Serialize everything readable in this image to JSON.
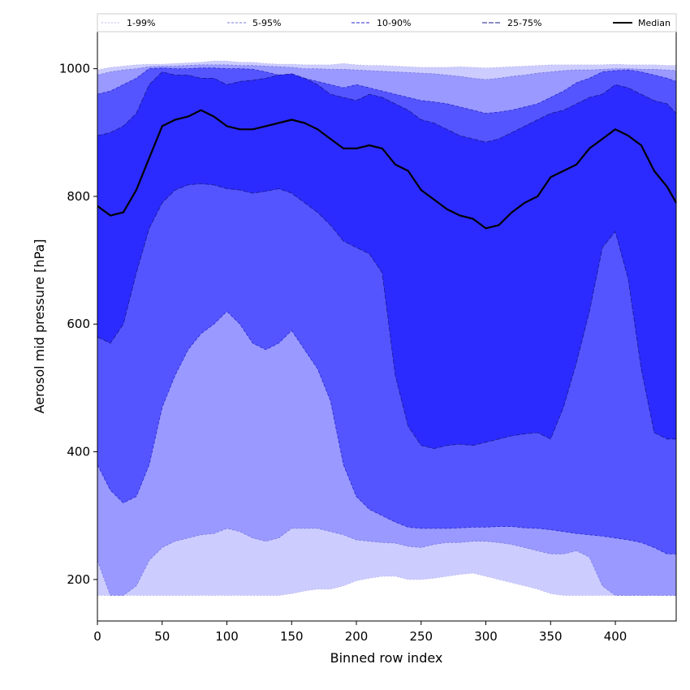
{
  "chart_data": {
    "type": "area",
    "xlabel": "Binned row index",
    "ylabel": "Aerosol mid pressure [hPa]",
    "xlim": [
      0,
      447
    ],
    "ylim": [
      135,
      1058
    ],
    "x_ticks": [
      0,
      50,
      100,
      150,
      200,
      250,
      300,
      350,
      400
    ],
    "y_ticks": [
      200,
      400,
      600,
      800,
      1000
    ],
    "grid": false,
    "legend_placement": "top",
    "floor": 175,
    "x": [
      0,
      10,
      20,
      30,
      40,
      50,
      60,
      70,
      80,
      90,
      100,
      110,
      120,
      130,
      140,
      150,
      160,
      170,
      180,
      190,
      200,
      210,
      220,
      230,
      240,
      250,
      260,
      270,
      280,
      290,
      300,
      310,
      320,
      330,
      340,
      350,
      360,
      370,
      380,
      390,
      400,
      410,
      420,
      430,
      440,
      447
    ],
    "series": [
      {
        "name": "1-99%",
        "color": "#ccccff",
        "line_color": "#b8b8ee",
        "dash": "2,2",
        "lower": [
          175,
          175,
          175,
          175,
          175,
          175,
          175,
          175,
          175,
          175,
          175,
          175,
          175,
          175,
          175,
          178,
          182,
          185,
          185,
          190,
          198,
          202,
          205,
          205,
          200,
          200,
          202,
          205,
          208,
          210,
          205,
          200,
          195,
          190,
          185,
          178,
          175,
          175,
          175,
          175,
          175,
          175,
          175,
          175,
          175,
          175
        ],
        "upper": [
          998,
          1002,
          1004,
          1006,
          1007,
          1007,
          1008,
          1009,
          1010,
          1012,
          1012,
          1010,
          1010,
          1008,
          1007,
          1007,
          1006,
          1006,
          1006,
          1008,
          1006,
          1005,
          1005,
          1004,
          1003,
          1002,
          1002,
          1002,
          1003,
          1002,
          1001,
          1002,
          1003,
          1004,
          1005,
          1006,
          1006,
          1006,
          1006,
          1006,
          1007,
          1006,
          1006,
          1006,
          1005,
          1005
        ]
      },
      {
        "name": "5-95%",
        "color": "#9999ff",
        "line_color": "#7a7ae0",
        "dash": "3,2",
        "lower": [
          230,
          175,
          175,
          190,
          230,
          250,
          260,
          265,
          270,
          272,
          280,
          275,
          265,
          260,
          265,
          280,
          280,
          280,
          275,
          270,
          262,
          260,
          258,
          257,
          252,
          250,
          255,
          258,
          258,
          260,
          260,
          258,
          255,
          250,
          245,
          240,
          240,
          245,
          235,
          190,
          175,
          175,
          175,
          175,
          175,
          175
        ],
        "upper": [
          990,
          995,
          998,
          1000,
          1003,
          1004,
          1004,
          1005,
          1006,
          1006,
          1006,
          1005,
          1005,
          1004,
          1003,
          1002,
          1000,
          1000,
          999,
          999,
          998,
          997,
          996,
          995,
          994,
          993,
          992,
          990,
          988,
          985,
          983,
          985,
          988,
          990,
          993,
          995,
          997,
          998,
          998,
          999,
          1000,
          1000,
          999,
          999,
          998,
          997
        ]
      },
      {
        "name": "10-90%",
        "color": "#5555ff",
        "line_color": "#2a2ad0",
        "dash": "4,2",
        "lower": [
          380,
          340,
          320,
          330,
          380,
          470,
          520,
          560,
          585,
          600,
          620,
          600,
          570,
          560,
          570,
          590,
          560,
          530,
          480,
          380,
          330,
          310,
          300,
          290,
          282,
          280,
          280,
          280,
          281,
          282,
          282,
          283,
          283,
          281,
          280,
          278,
          275,
          272,
          270,
          268,
          265,
          262,
          258,
          250,
          240,
          240
        ],
        "upper": [
          960,
          965,
          975,
          985,
          1000,
          1001,
          1000,
          1000,
          1001,
          1001,
          1000,
          1000,
          999,
          995,
          990,
          985,
          985,
          980,
          975,
          970,
          975,
          970,
          965,
          960,
          955,
          950,
          948,
          945,
          940,
          935,
          930,
          932,
          935,
          940,
          945,
          955,
          965,
          978,
          985,
          995,
          997,
          998,
          995,
          990,
          985,
          980
        ]
      },
      {
        "name": "25-75%",
        "color": "#2b2bff",
        "line_color": "#1a1a90",
        "dash": "6,2",
        "lower": [
          580,
          570,
          600,
          680,
          750,
          790,
          810,
          818,
          820,
          818,
          812,
          810,
          805,
          808,
          812,
          805,
          790,
          775,
          755,
          730,
          720,
          710,
          680,
          520,
          440,
          410,
          405,
          410,
          412,
          410,
          415,
          420,
          425,
          428,
          430,
          420,
          470,
          540,
          620,
          720,
          745,
          670,
          530,
          430,
          420,
          420
        ],
        "upper": [
          895,
          900,
          910,
          930,
          975,
          995,
          990,
          990,
          985,
          985,
          975,
          980,
          982,
          985,
          990,
          992,
          985,
          975,
          960,
          955,
          950,
          960,
          955,
          945,
          935,
          920,
          915,
          905,
          895,
          890,
          885,
          890,
          900,
          910,
          920,
          930,
          935,
          945,
          955,
          960,
          975,
          970,
          960,
          950,
          945,
          930
        ]
      }
    ],
    "median": {
      "name": "Median",
      "color": "#000000",
      "values": [
        785,
        770,
        775,
        810,
        860,
        910,
        920,
        925,
        935,
        925,
        910,
        905,
        905,
        910,
        915,
        920,
        915,
        905,
        890,
        875,
        875,
        880,
        875,
        850,
        840,
        810,
        795,
        780,
        770,
        765,
        750,
        755,
        775,
        790,
        800,
        830,
        840,
        850,
        875,
        890,
        905,
        895,
        880,
        840,
        815,
        790
      ]
    }
  }
}
